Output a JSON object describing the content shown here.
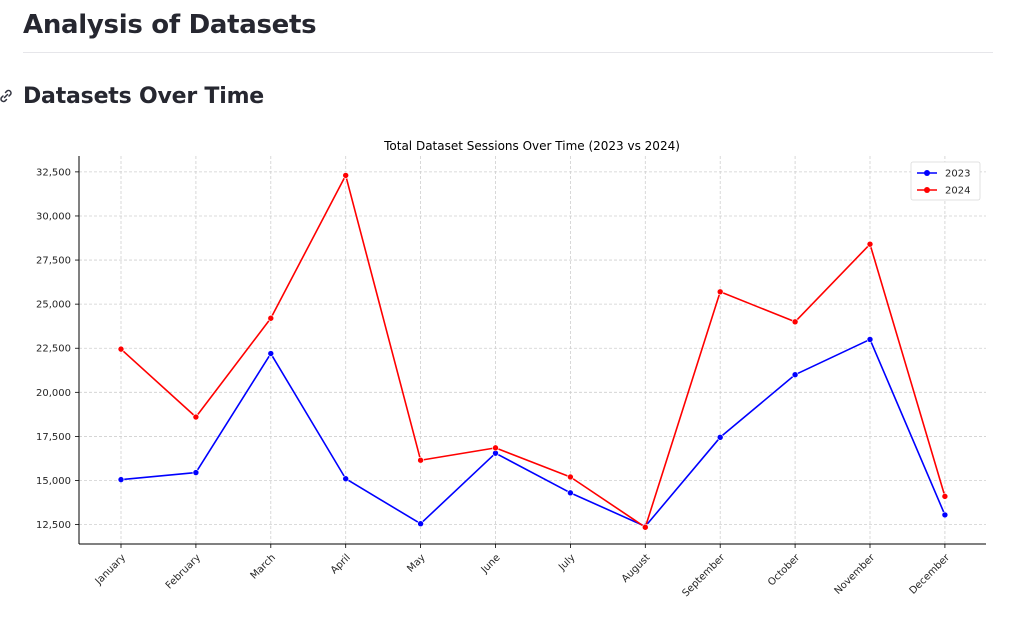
{
  "page": {
    "title": "Analysis of Datasets",
    "section_heading": "Datasets Over Time"
  },
  "icons": {
    "anchor": "link-icon"
  },
  "chart_data": {
    "type": "line",
    "title": "Total Dataset Sessions Over Time (2023 vs 2024)",
    "xlabel": "",
    "ylabel": "",
    "categories": [
      "January",
      "February",
      "March",
      "April",
      "May",
      "June",
      "July",
      "August",
      "September",
      "October",
      "November",
      "December"
    ],
    "series": [
      {
        "name": "2023",
        "color": "#0000ff",
        "values": [
          15050,
          15450,
          22200,
          15100,
          12550,
          16550,
          14300,
          12400,
          17450,
          21000,
          23000,
          13050
        ]
      },
      {
        "name": "2024",
        "color": "#ff0000",
        "values": [
          22450,
          18600,
          24200,
          32300,
          16150,
          16850,
          15200,
          12350,
          25700,
          24000,
          28400,
          14100
        ]
      }
    ],
    "ylim": [
      11400,
      33400
    ],
    "yticks": [
      12500,
      15000,
      17500,
      20000,
      22500,
      25000,
      27500,
      30000,
      32500
    ],
    "ytick_labels": [
      "12,500",
      "15,000",
      "17,500",
      "20,000",
      "22,500",
      "25,000",
      "27,500",
      "30,000",
      "32,500"
    ],
    "grid": true,
    "legend_position": "top-right"
  }
}
